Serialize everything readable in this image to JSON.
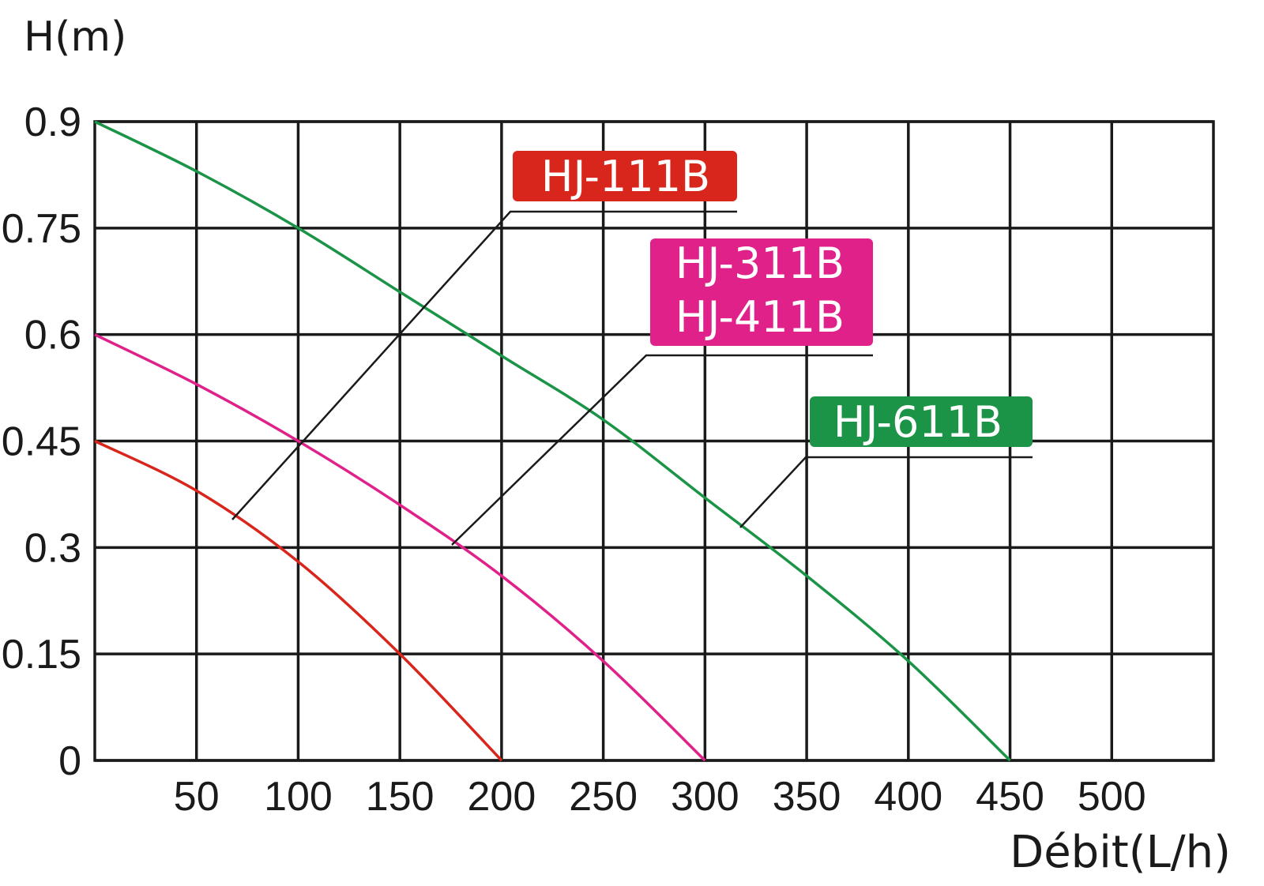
{
  "chart_data": {
    "type": "line",
    "title": "",
    "ylabel": "H(m)",
    "xlabel": "Débit(L/h)",
    "xlim": [
      0,
      550
    ],
    "ylim": [
      0,
      0.9
    ],
    "x_ticks": [
      "50",
      "100",
      "150",
      "200",
      "250",
      "300",
      "350",
      "400",
      "450",
      "500"
    ],
    "y_ticks": [
      "0",
      "0.15",
      "0.3",
      "0.45",
      "0.6",
      "0.75",
      "0.9"
    ],
    "grid": true,
    "series": [
      {
        "name": "HJ-111B",
        "color": "#d9261c",
        "x": [
          0,
          50,
          100,
          150,
          200
        ],
        "y": [
          0.45,
          0.38,
          0.28,
          0.15,
          0
        ]
      },
      {
        "name": "HJ-311B / HJ-411B",
        "color": "#e0218a",
        "x": [
          0,
          50,
          100,
          150,
          200,
          250,
          300
        ],
        "y": [
          0.6,
          0.53,
          0.45,
          0.36,
          0.26,
          0.14,
          0
        ]
      },
      {
        "name": "HJ-611B",
        "color": "#1b9447",
        "x": [
          0,
          50,
          100,
          150,
          200,
          250,
          300,
          350,
          400,
          450
        ],
        "y": [
          0.9,
          0.83,
          0.75,
          0.66,
          0.57,
          0.48,
          0.37,
          0.26,
          0.14,
          0
        ]
      }
    ],
    "labels": [
      {
        "lines": [
          "HJ-111B"
        ],
        "color": "#d9261c",
        "points_to_series": 0
      },
      {
        "lines": [
          "HJ-311B",
          "HJ-411B"
        ],
        "color": "#e0218a",
        "points_to_series": 1
      },
      {
        "lines": [
          "HJ-611B"
        ],
        "color": "#1b9447",
        "points_to_series": 2
      }
    ]
  }
}
